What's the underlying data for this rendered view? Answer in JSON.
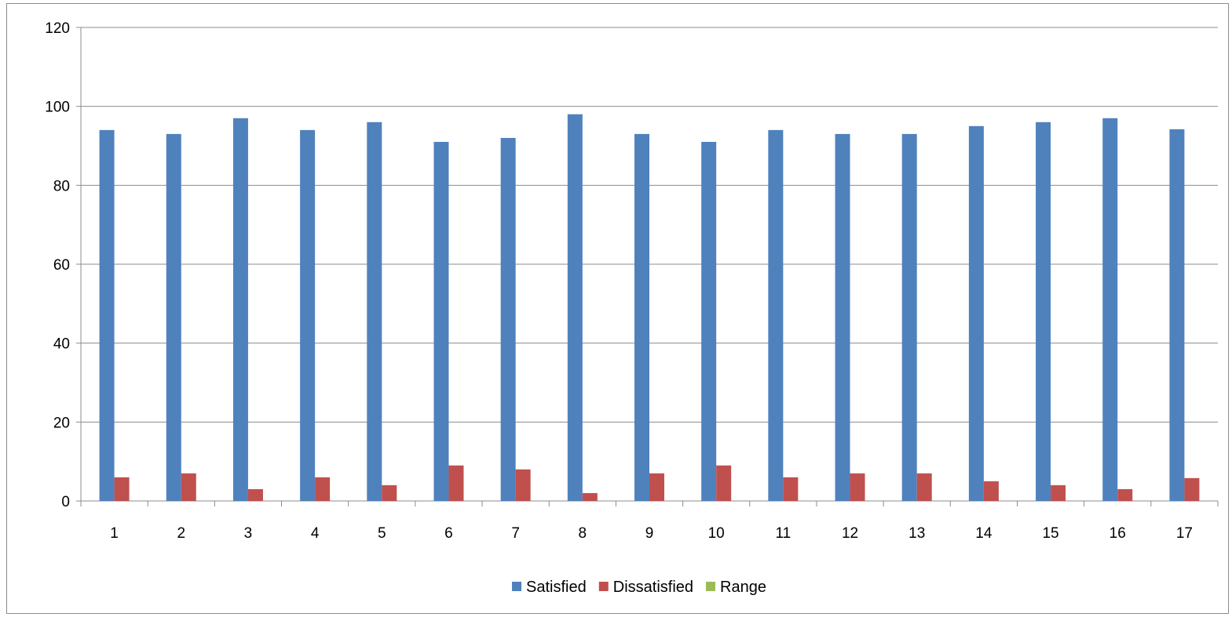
{
  "chart_data": {
    "type": "bar",
    "categories": [
      "1",
      "2",
      "3",
      "4",
      "5",
      "6",
      "7",
      "8",
      "9",
      "10",
      "11",
      "12",
      "13",
      "14",
      "15",
      "16",
      "17"
    ],
    "series": [
      {
        "name": "Satisfied",
        "color": "#4f81bd",
        "values": [
          94,
          93,
          97,
          94,
          96,
          91,
          92,
          98,
          93,
          91,
          94,
          93,
          93,
          95,
          96,
          97,
          94.2
        ]
      },
      {
        "name": "Dissatisfied",
        "color": "#c0504d",
        "values": [
          6,
          7,
          3,
          6,
          4,
          9,
          8,
          2,
          7,
          9,
          6,
          7,
          7,
          5,
          4,
          3,
          5.8
        ]
      },
      {
        "name": "Range",
        "color": "#9bbb59",
        "values": [
          0,
          0,
          0,
          0,
          0,
          0,
          0,
          0,
          0,
          0,
          0,
          0,
          0,
          0,
          0,
          0,
          0
        ]
      }
    ],
    "ylim": [
      0,
      120
    ],
    "yticks": [
      0,
      20,
      40,
      60,
      80,
      100,
      120
    ],
    "grid": true,
    "legend": "bottom"
  }
}
